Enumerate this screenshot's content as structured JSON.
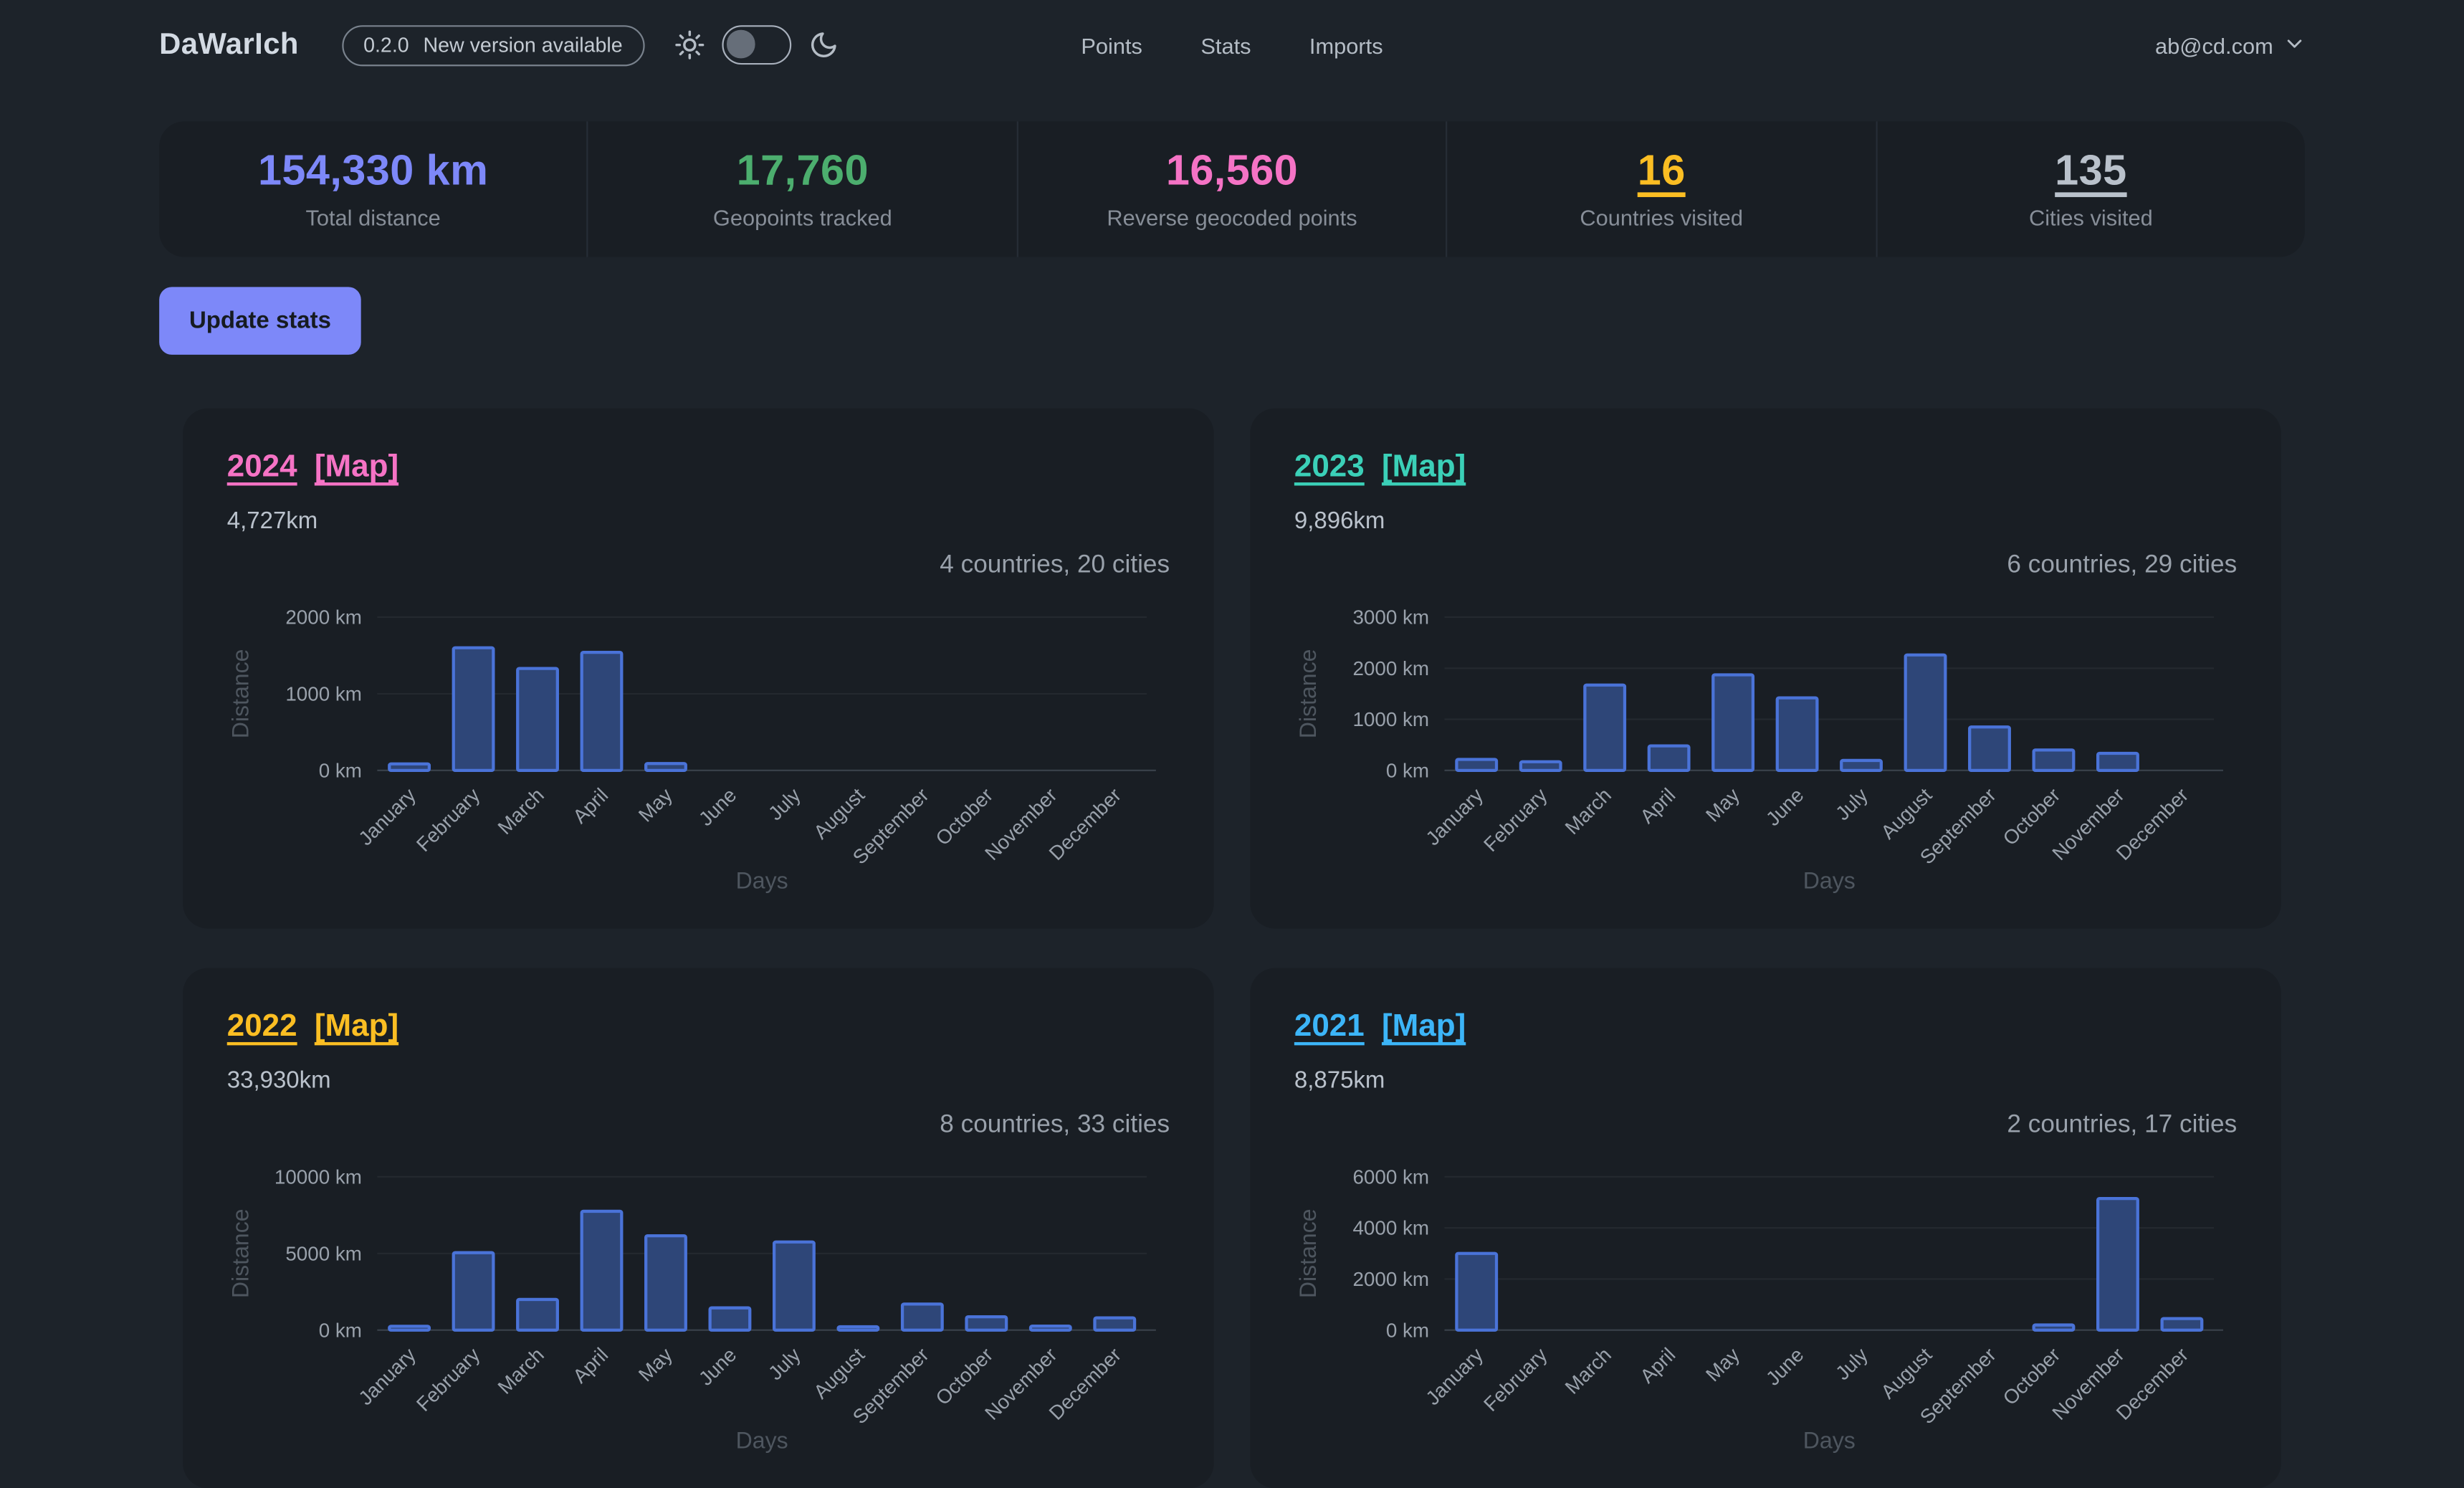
{
  "header": {
    "logo": "DaWarIch",
    "badge": {
      "version": "0.2.0",
      "text": "New version available"
    },
    "nav": [
      "Points",
      "Stats",
      "Imports"
    ],
    "user_email": "ab@cd.com"
  },
  "stats": {
    "update_button": "Update stats",
    "items": [
      {
        "value": "154,330 km",
        "label": "Total distance",
        "color": "#7d88f9",
        "underline": false,
        "link": false
      },
      {
        "value": "17,760",
        "label": "Geopoints tracked",
        "color": "#4cae6e",
        "underline": false,
        "link": false
      },
      {
        "value": "16,560",
        "label": "Reverse geocoded points",
        "color": "#f573c5",
        "underline": false,
        "link": false
      },
      {
        "value": "16",
        "label": "Countries visited",
        "color": "#fbbe23",
        "underline": true,
        "link": true
      },
      {
        "value": "135",
        "label": "Cities visited",
        "color": "#b9c1cb",
        "underline": true,
        "link": true
      }
    ]
  },
  "chart_common": {
    "bar_fill": "#2e4678",
    "bar_stroke": "#4a73d8",
    "tick_color": "#99a1ab",
    "axis_title_color": "#4e565f",
    "axis_line_color": "#3a424b",
    "unit": "km"
  },
  "chart_data": [
    {
      "type": "bar",
      "title": "2024",
      "map_label": "[Map]",
      "link_color": "#f573c5",
      "distance_label": "4,727km",
      "summary": "4 countries, 20 cities",
      "xlabel": "Days",
      "ylabel": "Distance",
      "ylim": [
        0,
        2000
      ],
      "yticks": [
        0,
        1000,
        2000
      ],
      "categories": [
        "January",
        "February",
        "March",
        "April",
        "May",
        "June",
        "July",
        "August",
        "September",
        "October",
        "November",
        "December"
      ],
      "values": [
        85,
        1600,
        1330,
        1540,
        90,
        0,
        0,
        0,
        0,
        0,
        0,
        0
      ]
    },
    {
      "type": "bar",
      "title": "2023",
      "map_label": "[Map]",
      "link_color": "#3bd0b8",
      "distance_label": "9,896km",
      "summary": "6 countries, 29 cities",
      "xlabel": "Days",
      "ylabel": "Distance",
      "ylim": [
        0,
        3000
      ],
      "yticks": [
        0,
        1000,
        2000,
        3000
      ],
      "categories": [
        "January",
        "February",
        "March",
        "April",
        "May",
        "June",
        "July",
        "August",
        "September",
        "October",
        "November",
        "December"
      ],
      "values": [
        215,
        170,
        1670,
        480,
        1870,
        1420,
        195,
        2260,
        850,
        400,
        335,
        0
      ]
    },
    {
      "type": "bar",
      "title": "2022",
      "map_label": "[Map]",
      "link_color": "#fbbe23",
      "distance_label": "33,930km",
      "summary": "8 countries, 33 cities",
      "xlabel": "Days",
      "ylabel": "Distance",
      "ylim": [
        0,
        10000
      ],
      "yticks": [
        0,
        5000,
        10000
      ],
      "categories": [
        "January",
        "February",
        "March",
        "April",
        "May",
        "June",
        "July",
        "August",
        "September",
        "October",
        "November",
        "December"
      ],
      "values": [
        250,
        5050,
        2000,
        7750,
        6150,
        1450,
        5750,
        220,
        1700,
        870,
        260,
        800
      ]
    },
    {
      "type": "bar",
      "title": "2021",
      "map_label": "[Map]",
      "link_color": "#3cb5f8",
      "distance_label": "8,875km",
      "summary": "2 countries, 17 cities",
      "xlabel": "Days",
      "ylabel": "Distance",
      "ylim": [
        0,
        6000
      ],
      "yticks": [
        0,
        2000,
        4000,
        6000
      ],
      "categories": [
        "January",
        "February",
        "March",
        "April",
        "May",
        "June",
        "July",
        "August",
        "September",
        "October",
        "November",
        "December"
      ],
      "values": [
        3000,
        0,
        0,
        0,
        0,
        0,
        0,
        0,
        0,
        200,
        5150,
        450
      ]
    }
  ]
}
